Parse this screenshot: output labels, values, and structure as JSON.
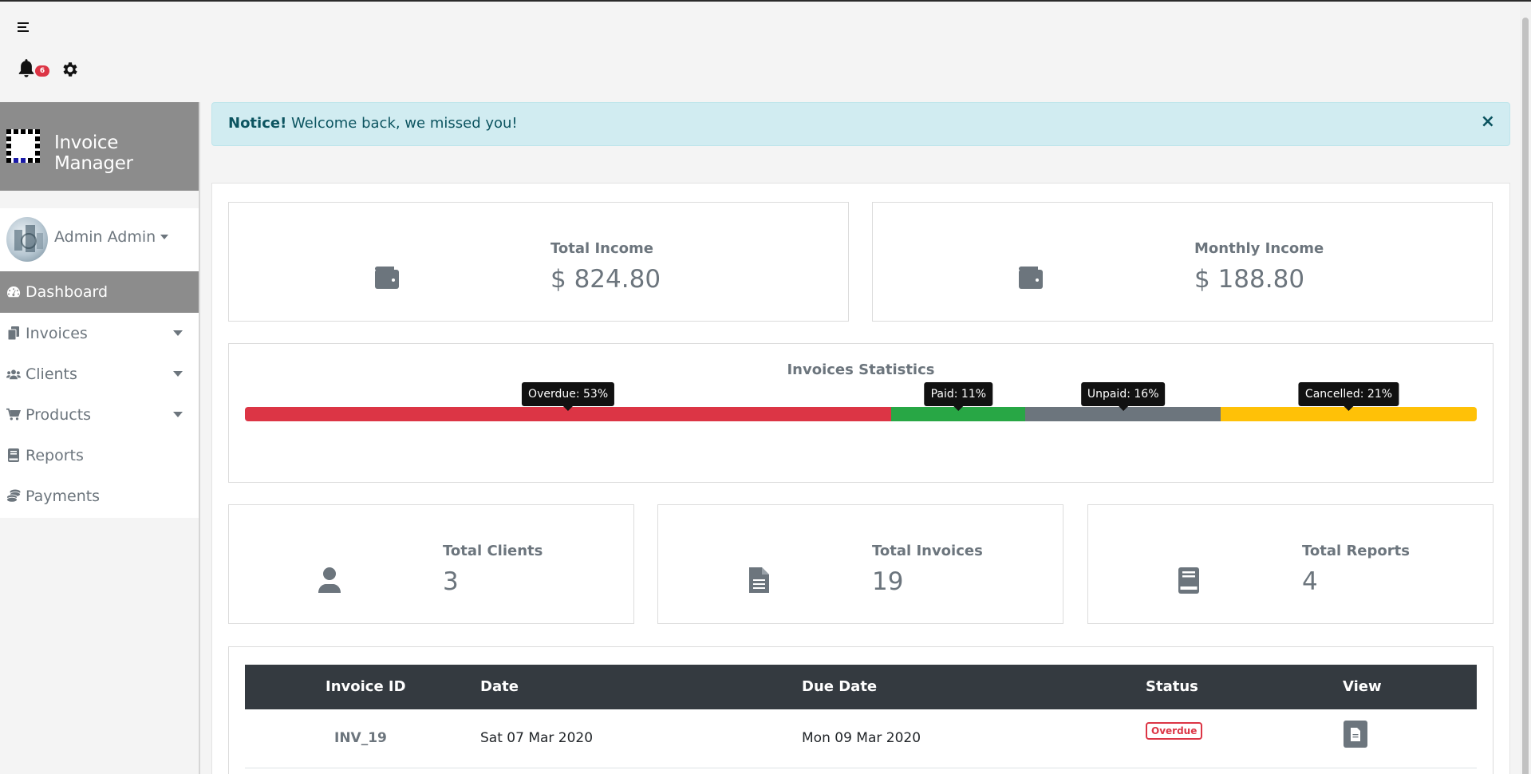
{
  "topbar": {
    "notification_count": "6"
  },
  "brand": {
    "title": "Invoice Manager"
  },
  "user": {
    "name": "Admin Admin"
  },
  "nav": {
    "items": [
      {
        "label": "Dashboard",
        "active": true
      },
      {
        "label": "Invoices",
        "dropdown": true
      },
      {
        "label": "Clients",
        "dropdown": true
      },
      {
        "label": "Products",
        "dropdown": true
      },
      {
        "label": "Reports"
      },
      {
        "label": "Payments"
      }
    ]
  },
  "notice": {
    "strong": "Notice!",
    "message": "Welcome back, we missed you!",
    "close": "×"
  },
  "income": {
    "total": {
      "label": "Total Income",
      "value": "$ 824.80"
    },
    "monthly": {
      "label": "Monthly Income",
      "value": "$ 188.80"
    }
  },
  "invoice_stats": {
    "title": "Invoices Statistics",
    "segments": [
      {
        "label": "Overdue: 53%",
        "percent": 53,
        "color": "#dc3545"
      },
      {
        "label": "Paid: 11%",
        "percent": 11,
        "color": "#28a745"
      },
      {
        "label": "Unpaid: 16%",
        "percent": 16,
        "color": "#6c757d"
      },
      {
        "label": "Cancelled: 21%",
        "percent": 21,
        "color": "#ffc107"
      }
    ]
  },
  "totals": {
    "clients": {
      "label": "Total Clients",
      "value": "3"
    },
    "invoices": {
      "label": "Total Invoices",
      "value": "19"
    },
    "reports": {
      "label": "Total Reports",
      "value": "4"
    }
  },
  "table": {
    "headers": {
      "invoice_id": "Invoice ID",
      "date": "Date",
      "due_date": "Due Date",
      "status": "Status",
      "view": "View"
    },
    "rows": [
      {
        "invoice_id": "INV_19",
        "date": "Sat 07 Mar 2020",
        "due_date": "Mon 09 Mar 2020",
        "status": "Overdue"
      }
    ]
  }
}
